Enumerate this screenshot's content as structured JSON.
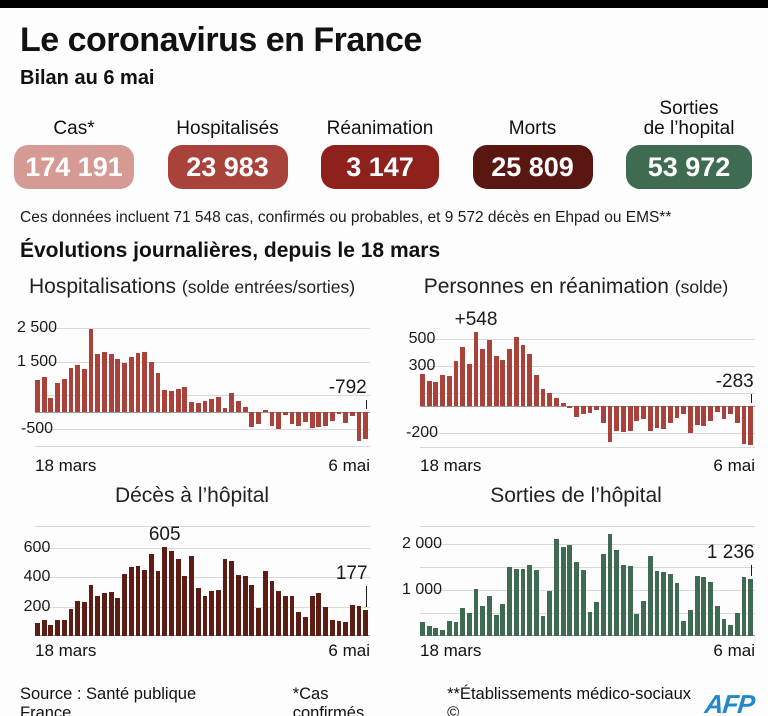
{
  "page": {
    "title": "Le coronavirus en France",
    "subtitle": "Bilan au 6 mai",
    "note": "Ces données incluent 71 548 cas, confirmés ou probables, et 9 572 décès en Ehpad ou EMS**",
    "section_heading": "Évolutions journalières, depuis le 18 mars"
  },
  "stats": [
    {
      "label": "Cas*",
      "value": "174 191",
      "color": "#d49a93"
    },
    {
      "label": "Hospitalisés",
      "value": "23 983",
      "color": "#a8423a"
    },
    {
      "label": "Réanimation",
      "value": "3 147",
      "color": "#8e211b"
    },
    {
      "label": "Morts",
      "value": "25 809",
      "color": "#5a1712"
    },
    {
      "label": "Sorties\nde l’hopital",
      "value": "53 972",
      "color": "#3f6b53"
    }
  ],
  "footer": {
    "source": "Source : Santé publique France",
    "note1": "*Cas confirmés",
    "note2": "**Établissements médico-sociaux ©",
    "logo": "AFP"
  },
  "chart_data": [
    {
      "type": "bar",
      "title": "Hospitalisations",
      "title_suffix": "(solde entrées/sorties)",
      "x_start": "18 mars",
      "x_end": "6 mai",
      "bar_color": "#a8423a",
      "ylim": [
        -1150,
        2700
      ],
      "gridlines": [
        2500,
        1500,
        500,
        -500,
        -1000
      ],
      "yticks": [
        {
          "value": 2500,
          "label": "2 500"
        },
        {
          "value": 1500,
          "label": "1 500"
        },
        {
          "value": -500,
          "label": "-500"
        }
      ],
      "values": [
        940,
        1030,
        415,
        875,
        980,
        1310,
        1395,
        1270,
        2450,
        1710,
        1770,
        1710,
        1580,
        1470,
        1635,
        1750,
        1770,
        1500,
        1165,
        665,
        625,
        700,
        750,
        310,
        280,
        330,
        385,
        455,
        120,
        560,
        345,
        160,
        -430,
        -360,
        60,
        -420,
        -500,
        -90,
        -350,
        -420,
        -300,
        -480,
        -450,
        -420,
        -250,
        -60,
        -310,
        -100,
        -850,
        -792
      ],
      "annotations": [
        {
          "index": 49,
          "label": "-792",
          "tick": 12,
          "dx": -18
        }
      ]
    },
    {
      "type": "bar",
      "title": "Personnes en réanimation",
      "title_suffix": "(solde)",
      "x_start": "18 mars",
      "x_end": "6 mai",
      "bar_color": "#a8423a",
      "ylim": [
        -330,
        630
      ],
      "gridlines": [
        500,
        300,
        100,
        -200,
        -300
      ],
      "yticks": [
        {
          "value": 500,
          "label": "500"
        },
        {
          "value": 300,
          "label": "300"
        },
        {
          "value": -200,
          "label": "-200"
        }
      ],
      "values": [
        240,
        185,
        180,
        230,
        225,
        335,
        440,
        315,
        548,
        425,
        490,
        370,
        345,
        425,
        515,
        455,
        385,
        230,
        130,
        95,
        60,
        25,
        -15,
        -80,
        -60,
        -50,
        -30,
        -120,
        -265,
        -180,
        -190,
        -180,
        -110,
        -90,
        -185,
        -160,
        -165,
        -125,
        -85,
        -55,
        -195,
        -135,
        -145,
        -105,
        -45,
        -95,
        -60,
        -120,
        -275,
        -283
      ],
      "annotations": [
        {
          "index": 8,
          "label": "+548",
          "tick": 0,
          "dx": 0
        },
        {
          "index": 49,
          "label": "-283",
          "tick": 12,
          "dx": -16
        }
      ]
    },
    {
      "type": "bar",
      "title": "Décès à l’hôpital",
      "title_suffix": "",
      "x_start": "18 mars",
      "x_end": "6 mai",
      "bar_color": "#5c1d15",
      "ylim": [
        0,
        750
      ],
      "gridlines": [
        750,
        600,
        400,
        200
      ],
      "yticks": [
        {
          "value": 600,
          "label": "600"
        },
        {
          "value": 400,
          "label": "400"
        },
        {
          "value": 200,
          "label": "200"
        }
      ],
      "values": [
        89,
        108,
        78,
        112,
        112,
        186,
        240,
        231,
        345,
        270,
        295,
        300,
        260,
        420,
        470,
        480,
        450,
        560,
        440,
        605,
        580,
        525,
        410,
        545,
        330,
        275,
        310,
        315,
        525,
        510,
        415,
        410,
        345,
        190,
        445,
        375,
        310,
        275,
        270,
        165,
        130,
        270,
        290,
        200,
        110,
        105,
        95,
        210,
        205,
        177
      ],
      "annotations": [
        {
          "index": 19,
          "label": "605",
          "tick": 0,
          "dx": 0
        },
        {
          "index": 49,
          "label": "177",
          "tick": 24,
          "dx": -14
        }
      ]
    },
    {
      "type": "bar",
      "title": "Sorties de l’hôpital",
      "title_suffix": "",
      "x_start": "18 mars",
      "x_end": "6 mai",
      "bar_color": "#3f6b53",
      "ylim": [
        0,
        2400
      ],
      "gridlines": [
        2400,
        2000,
        1500,
        1000,
        500
      ],
      "yticks": [
        {
          "value": 2000,
          "label": "2 000"
        },
        {
          "value": 1000,
          "label": "1 000"
        }
      ],
      "values": [
        315,
        215,
        185,
        135,
        335,
        300,
        615,
        510,
        1015,
        665,
        875,
        465,
        690,
        1510,
        1460,
        1460,
        1550,
        1435,
        440,
        985,
        2120,
        1950,
        1985,
        1620,
        1440,
        520,
        745,
        1780,
        2230,
        1870,
        1560,
        1520,
        480,
        760,
        1750,
        1420,
        1390,
        1350,
        1150,
        330,
        570,
        1310,
        1290,
        1180,
        660,
        380,
        240,
        510,
        1290,
        1236
      ],
      "annotations": [
        {
          "index": 49,
          "label": "1 236",
          "tick": 14,
          "dx": -20
        }
      ]
    }
  ]
}
